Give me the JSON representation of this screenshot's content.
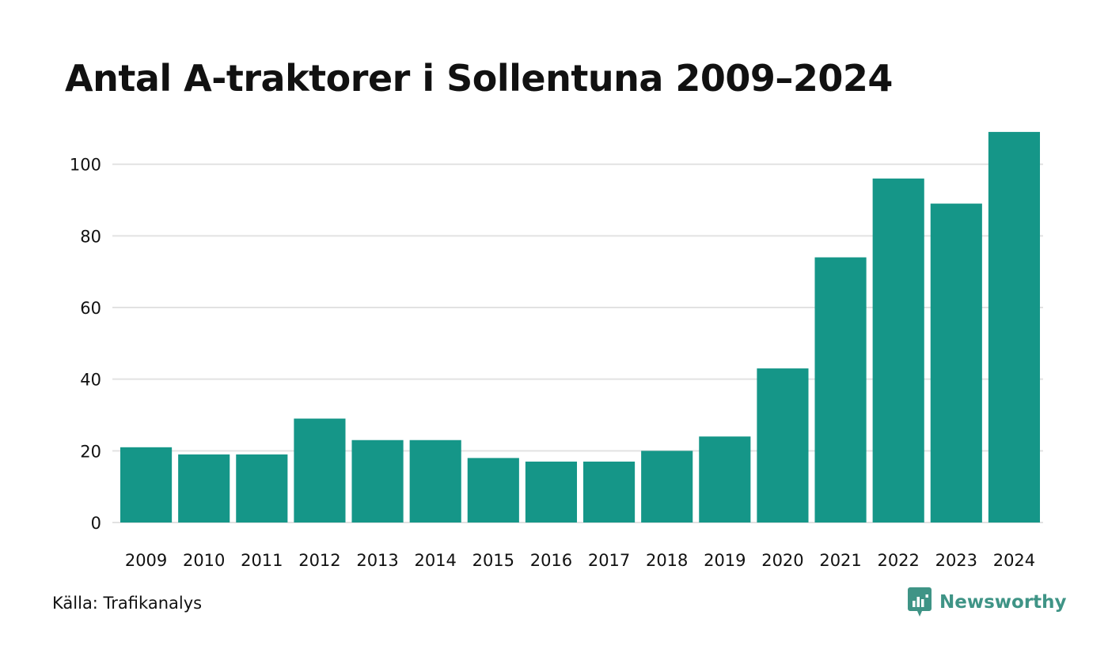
{
  "title": "Antal A-traktorer i Sollentuna 2009–2024",
  "source": "Källa: Trafikanalys",
  "brand": {
    "name": "Newsworthy",
    "icon": "newsworthy-logo-icon",
    "color": "#3f9486"
  },
  "colors": {
    "bar": "#159688",
    "grid": "#e2e2e2",
    "text": "#111111"
  },
  "chart_data": {
    "type": "bar",
    "title": "Antal A-traktorer i Sollentuna 2009–2024",
    "xlabel": "",
    "ylabel": "",
    "categories": [
      "2009",
      "2010",
      "2011",
      "2012",
      "2013",
      "2014",
      "2015",
      "2016",
      "2017",
      "2018",
      "2019",
      "2020",
      "2021",
      "2022",
      "2023",
      "2024"
    ],
    "values": [
      21,
      19,
      19,
      29,
      23,
      23,
      18,
      17,
      17,
      20,
      24,
      43,
      74,
      96,
      89,
      109
    ],
    "yticks": [
      0,
      20,
      40,
      60,
      80,
      100
    ],
    "ylim": [
      0,
      109
    ],
    "grid": true,
    "legend": "none"
  }
}
